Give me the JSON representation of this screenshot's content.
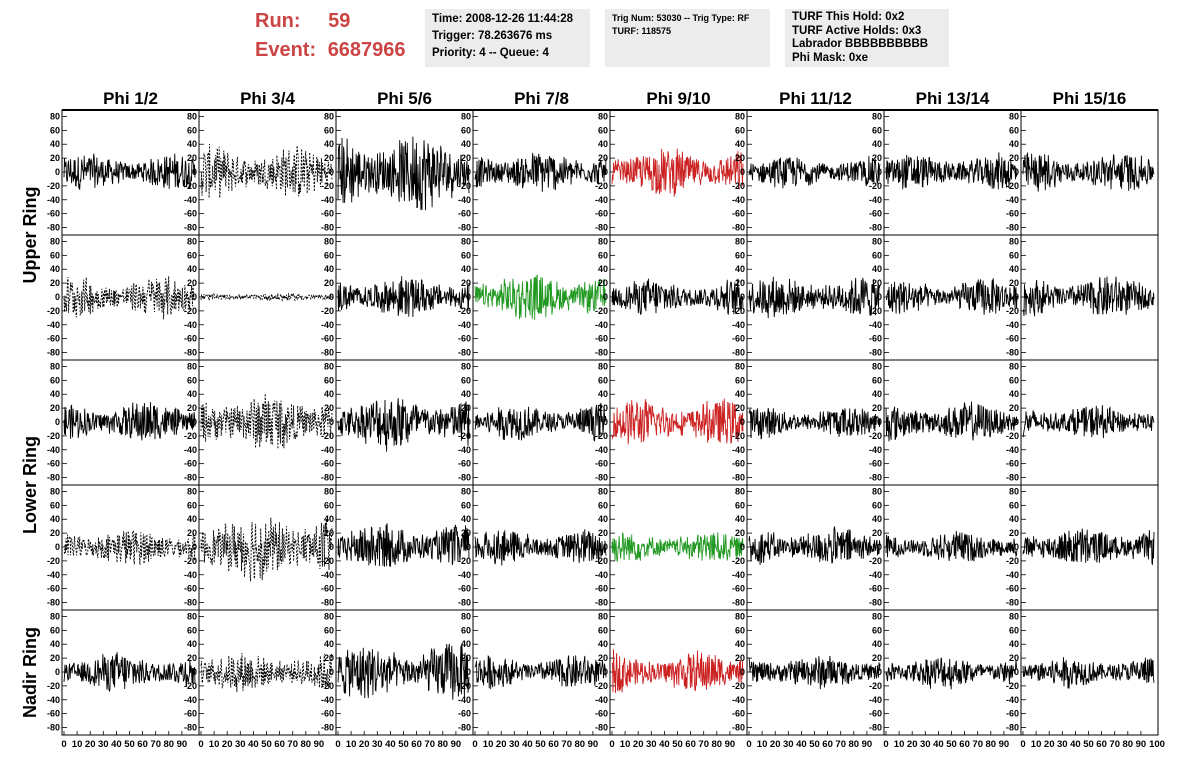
{
  "header": {
    "run_label": "Run:",
    "run_value": "59",
    "event_label": "Event:",
    "event_value": "6687966"
  },
  "info_boxes": [
    {
      "lines": [
        "Time: 2008-12-26 11:44:28",
        "Trigger: 78.263676 ms",
        "Priority: 4 -- Queue: 4"
      ]
    },
    {
      "lines": [
        "Trig Num: 53030 -- Trig Type: RF",
        "",
        "TURF: 118575"
      ]
    },
    {
      "lines": [
        "TURF This Hold: 0x2",
        "TURF Active Holds: 0x3",
        "Labrador BBBBBBBBBB",
        "Phi Mask: 0xe"
      ]
    }
  ],
  "colors": {
    "run_text": "#cc4444",
    "info_bg": "#ececec",
    "trace_default": "#000000",
    "trace_red": "#cc2222",
    "trace_green": "#229922"
  },
  "chart_data": {
    "type": "line",
    "columns": [
      "Phi 1/2",
      "Phi 3/4",
      "Phi 5/6",
      "Phi 7/8",
      "Phi 9/10",
      "Phi 11/12",
      "Phi 13/14",
      "Phi 15/16"
    ],
    "ring_labels": [
      {
        "text": "Upper Ring",
        "rows": [
          0,
          1
        ]
      },
      {
        "text": "Lower Ring",
        "rows": [
          2,
          3
        ]
      },
      {
        "text": "Nadir Ring",
        "rows": [
          4
        ]
      }
    ],
    "ylim": [
      -85,
      85
    ],
    "xlim": [
      0,
      100
    ],
    "yticks": [
      -80,
      -60,
      -40,
      -20,
      0,
      20,
      40,
      60,
      80
    ],
    "xticks": [
      0,
      10,
      20,
      30,
      40,
      50,
      60,
      70,
      80,
      90
    ],
    "x_end_label": "100",
    "panels": [
      [
        {
          "style": "solid",
          "color": "black",
          "amp": 14
        },
        {
          "style": "dashed",
          "color": "black",
          "amp": 20
        },
        {
          "style": "solid",
          "color": "black",
          "amp": 30
        },
        {
          "style": "solid",
          "color": "black",
          "amp": 16
        },
        {
          "style": "solid",
          "color": "red",
          "amp": 18
        },
        {
          "style": "solid",
          "color": "black",
          "amp": 12
        },
        {
          "style": "solid",
          "color": "black",
          "amp": 14
        },
        {
          "style": "solid",
          "color": "black",
          "amp": 15
        }
      ],
      [
        {
          "style": "dashed",
          "color": "black",
          "amp": 16
        },
        {
          "style": "dashed",
          "color": "black",
          "amp": 3
        },
        {
          "style": "solid",
          "color": "black",
          "amp": 16
        },
        {
          "style": "solid",
          "color": "green",
          "amp": 18
        },
        {
          "style": "solid",
          "color": "black",
          "amp": 14
        },
        {
          "style": "solid",
          "color": "black",
          "amp": 16
        },
        {
          "style": "solid",
          "color": "black",
          "amp": 14
        },
        {
          "style": "solid",
          "color": "black",
          "amp": 16
        }
      ],
      [
        {
          "style": "solid",
          "color": "black",
          "amp": 16
        },
        {
          "style": "dashed",
          "color": "black",
          "amp": 22
        },
        {
          "style": "solid",
          "color": "black",
          "amp": 22
        },
        {
          "style": "solid",
          "color": "black",
          "amp": 14
        },
        {
          "style": "solid",
          "color": "red",
          "amp": 18
        },
        {
          "style": "solid",
          "color": "black",
          "amp": 12
        },
        {
          "style": "solid",
          "color": "black",
          "amp": 15
        },
        {
          "style": "solid",
          "color": "black",
          "amp": 13
        }
      ],
      [
        {
          "style": "dashed",
          "color": "black",
          "amp": 14
        },
        {
          "style": "dashed",
          "color": "black",
          "amp": 26
        },
        {
          "style": "solid",
          "color": "black",
          "amp": 18
        },
        {
          "style": "solid",
          "color": "black",
          "amp": 14
        },
        {
          "style": "solid",
          "color": "green",
          "amp": 12
        },
        {
          "style": "solid",
          "color": "black",
          "amp": 15
        },
        {
          "style": "solid",
          "color": "black",
          "amp": 12
        },
        {
          "style": "solid",
          "color": "black",
          "amp": 15
        }
      ],
      [
        {
          "style": "solid",
          "color": "black",
          "amp": 15
        },
        {
          "style": "dashed",
          "color": "black",
          "amp": 15
        },
        {
          "style": "solid",
          "color": "black",
          "amp": 22
        },
        {
          "style": "solid",
          "color": "black",
          "amp": 13
        },
        {
          "style": "solid",
          "color": "red",
          "amp": 16
        },
        {
          "style": "solid",
          "color": "black",
          "amp": 13
        },
        {
          "style": "solid",
          "color": "black",
          "amp": 13
        },
        {
          "style": "solid",
          "color": "black",
          "amp": 12
        }
      ]
    ]
  }
}
